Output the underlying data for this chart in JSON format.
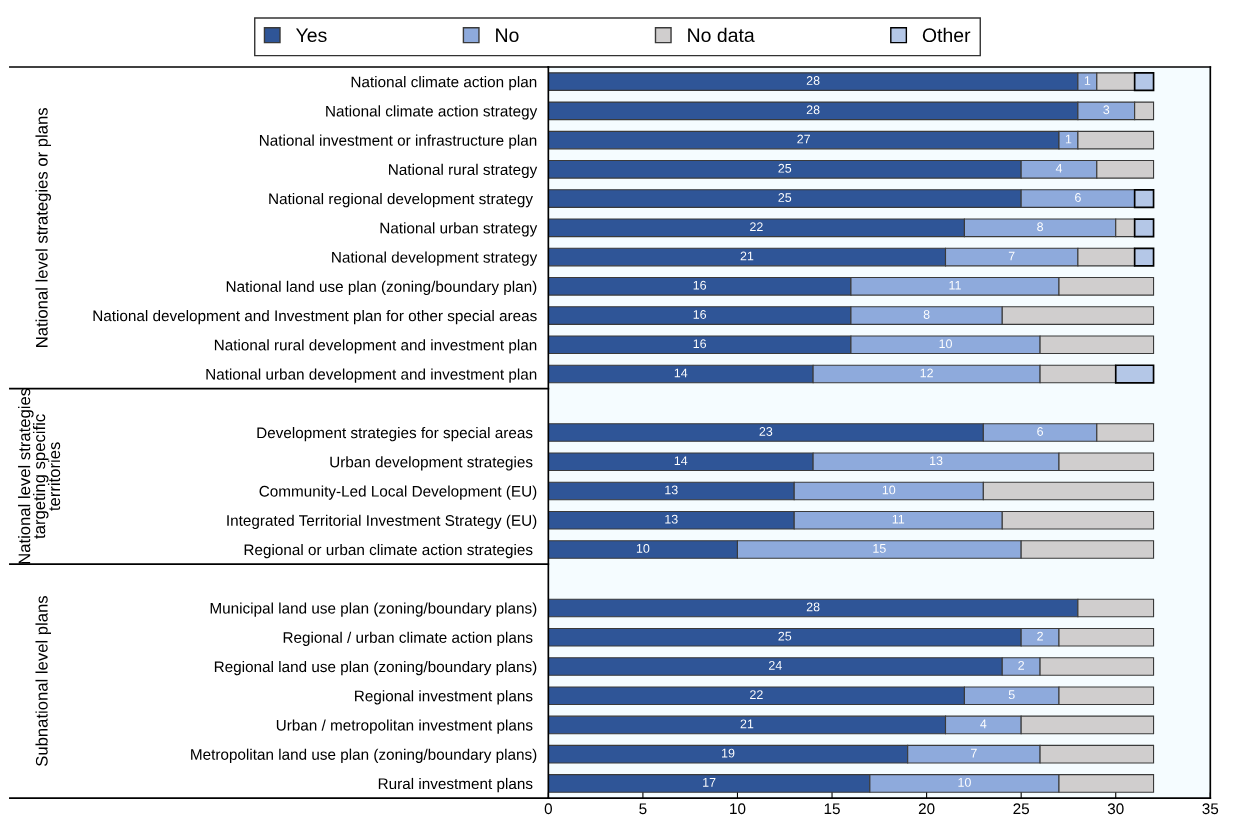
{
  "chart_data": {
    "type": "bar",
    "orientation": "horizontal",
    "stacked": true,
    "categories": [
      "National climate action plan",
      "National climate action strategy",
      "National investment or infrastructure plan",
      "National rural strategy",
      "National regional development strategy ",
      "National urban strategy",
      "National development strategy",
      "National land use plan (zoning/boundary plan)",
      "National development and Investment plan for other special areas",
      "National rural development and investment plan",
      "National urban development and investment plan",
      null,
      "Development strategies for special areas ",
      "Urban development strategies ",
      "Community-Led Local Development (EU)",
      "Integrated Territorial Investment Strategy (EU)",
      "Regional or urban climate action strategies ",
      null,
      "Municipal land use plan (zoning/boundary plans)",
      "Regional / urban climate action plans ",
      "Regional land use plan (zoning/boundary plans)",
      "Regional investment plans ",
      "Urban / metropolitan investment plans ",
      "Metropolitan land use plan (zoning/boundary plans)",
      "Rural investment plans "
    ],
    "series": [
      {
        "name": "Yes",
        "color": "#2f5597",
        "values": [
          28,
          28,
          27,
          25,
          25,
          22,
          21,
          16,
          16,
          16,
          14,
          null,
          23,
          14,
          13,
          13,
          10,
          null,
          28,
          25,
          24,
          22,
          21,
          19,
          17
        ],
        "value_labels": [
          "28",
          "28",
          "27",
          "25",
          "25",
          "22",
          "21",
          "16",
          "16",
          "16",
          "14",
          null,
          "23",
          "14",
          "13",
          "13",
          "10",
          null,
          "28",
          "25",
          "24",
          "22",
          "21",
          "19",
          "17"
        ]
      },
      {
        "name": "No",
        "color": "#8eaadc",
        "values": [
          1,
          3,
          1,
          4,
          6,
          8,
          7,
          11,
          8,
          10,
          12,
          null,
          6,
          13,
          10,
          11,
          15,
          null,
          null,
          2,
          2,
          5,
          4,
          7,
          10
        ],
        "value_labels": [
          "1",
          "3",
          "1",
          "4",
          "6",
          "8",
          "7",
          "11",
          "8",
          "10",
          "12",
          null,
          "6",
          "13",
          "10",
          "11",
          "15",
          null,
          null,
          "2",
          "2",
          "5",
          "4",
          "7",
          "10"
        ]
      },
      {
        "name": "No data",
        "color": "#d0cece",
        "values": [
          2,
          1,
          4,
          3,
          null,
          1,
          3,
          5,
          8,
          6,
          4,
          null,
          3,
          5,
          9,
          8,
          7,
          null,
          4,
          5,
          6,
          5,
          7,
          6,
          5
        ]
      },
      {
        "name": "Other",
        "color": "#b4c7e7",
        "values": [
          1,
          null,
          null,
          null,
          1,
          1,
          1,
          null,
          null,
          null,
          2,
          null,
          null,
          null,
          null,
          null,
          null,
          null,
          null,
          null,
          null,
          null,
          null,
          null,
          null
        ]
      }
    ],
    "xlim": [
      0,
      35
    ],
    "xticks": [
      0,
      5,
      10,
      15,
      20,
      25,
      30,
      35
    ],
    "grid": false,
    "legend": "top",
    "annotations": [
      "National level strategies or plans",
      "National level strategies\ntargeting specific\nterritories",
      "Subnational level plans"
    ]
  }
}
